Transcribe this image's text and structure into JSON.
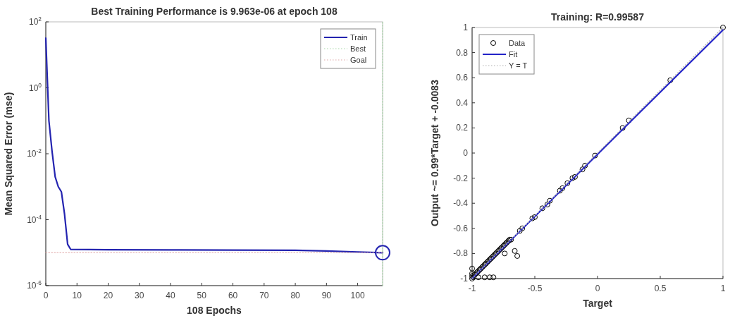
{
  "chart_data": [
    {
      "type": "line",
      "title": "Best Training Performance is 9.963e-06 at epoch 108",
      "xlabel": "108 Epochs",
      "ylabel": "Mean Squared Error  (mse)",
      "log": "y",
      "xlim": [
        0,
        108
      ],
      "xticks": [
        0,
        10,
        20,
        30,
        40,
        50,
        60,
        70,
        80,
        90,
        100
      ],
      "ylim": [
        1e-06,
        100
      ],
      "yticks": [
        {
          "value": 1e-06,
          "label": "10$^{-6}$"
        },
        {
          "value": 0.0001,
          "label": "10$^{-4}$"
        },
        {
          "value": 0.01,
          "label": "10$^{-2}$"
        },
        {
          "value": 1,
          "label": "10$^{0}$"
        },
        {
          "value": 100,
          "label": "10$^{2}$"
        }
      ],
      "legend": "top right",
      "grid": false,
      "series": [
        {
          "name": "Train",
          "type": "line",
          "color": "#2424b0",
          "line_style": "solid",
          "x": [
            0,
            1,
            2,
            3,
            4,
            5,
            6,
            7,
            8,
            20,
            40,
            60,
            80,
            90,
            100,
            108
          ],
          "values": [
            32,
            0.1,
            0.012,
            0.002,
            0.001,
            0.0007,
            0.00015,
            1.8e-05,
            1.25e-05,
            1.22e-05,
            1.21e-05,
            1.2e-05,
            1.18e-05,
            1.12e-05,
            1.05e-05,
            9.963e-06
          ]
        },
        {
          "name": "Best",
          "type": "line",
          "color": "#a8d8a8",
          "line_style": "dotted",
          "x": [
            108,
            108
          ],
          "values": [
            1e-06,
            100
          ]
        },
        {
          "name": "Goal",
          "type": "line",
          "color": "#e0a8a8",
          "line_style": "dotted",
          "x": [
            0,
            108
          ],
          "values": [
            1e-05,
            1e-05
          ]
        },
        {
          "type": "scatter",
          "color": "#2424b0",
          "marker": "circle",
          "x": [
            108
          ],
          "values": [
            9.963e-06
          ]
        }
      ]
    },
    {
      "type": "scatter",
      "title": "Training: R=0.99587",
      "xlabel": "Target",
      "ylabel": "Output ~= 0.99*Target + -0.0083",
      "xlim": [
        -1,
        1
      ],
      "xticks": [
        -1,
        -0.5,
        0,
        0.5,
        1
      ],
      "ylim": [
        -1,
        1
      ],
      "yticks": [
        -1,
        -0.8,
        -0.6,
        -0.4,
        -0.2,
        0,
        0.2,
        0.4,
        0.6,
        0.8,
        1
      ],
      "legend": "top left",
      "grid": false,
      "series": [
        {
          "name": "Data",
          "type": "scatter",
          "color": "#000000",
          "marker": "circle",
          "x": [
            -1,
            -1,
            -1,
            -1,
            -0.99,
            -0.98,
            -0.97,
            -0.96,
            -0.95,
            -0.94,
            -0.93,
            -0.92,
            -0.91,
            -0.9,
            -0.89,
            -0.88,
            -0.87,
            -0.86,
            -0.85,
            -0.84,
            -0.83,
            -0.82,
            -0.81,
            -0.8,
            -0.79,
            -0.78,
            -0.77,
            -0.76,
            -0.75,
            -0.74,
            -0.73,
            -0.72,
            -0.71,
            -0.7,
            -0.69,
            -0.74,
            -0.66,
            -0.64,
            -0.95,
            -0.9,
            -0.86,
            -0.83,
            -0.62,
            -0.6,
            -0.52,
            -0.5,
            -0.44,
            -0.4,
            -0.38,
            -0.3,
            -0.28,
            -0.24,
            -0.2,
            -0.18,
            -0.12,
            -0.1,
            -0.02,
            0.2,
            0.25,
            0.58,
            1
          ],
          "values": [
            -1,
            -0.98,
            -0.96,
            -0.92,
            -0.99,
            -0.97,
            -0.96,
            -0.95,
            -0.94,
            -0.93,
            -0.92,
            -0.91,
            -0.9,
            -0.89,
            -0.88,
            -0.87,
            -0.86,
            -0.85,
            -0.84,
            -0.83,
            -0.82,
            -0.81,
            -0.8,
            -0.79,
            -0.78,
            -0.77,
            -0.76,
            -0.75,
            -0.74,
            -0.73,
            -0.72,
            -0.71,
            -0.7,
            -0.69,
            -0.69,
            -0.8,
            -0.78,
            -0.82,
            -0.99,
            -0.99,
            -0.99,
            -0.99,
            -0.62,
            -0.6,
            -0.52,
            -0.51,
            -0.44,
            -0.41,
            -0.38,
            -0.3,
            -0.28,
            -0.24,
            -0.2,
            -0.19,
            -0.13,
            -0.1,
            -0.02,
            0.2,
            0.26,
            0.58,
            1
          ]
        },
        {
          "name": "Fit",
          "type": "line",
          "color": "#2323c8",
          "line_style": "solid",
          "x": [
            -1,
            1
          ],
          "values": [
            -1,
            0.98
          ]
        },
        {
          "name": "Y = T",
          "type": "line",
          "color": "#b0b0b0",
          "line_style": "dotted",
          "x": [
            -1,
            1
          ],
          "values": [
            -1,
            1
          ]
        }
      ]
    }
  ]
}
